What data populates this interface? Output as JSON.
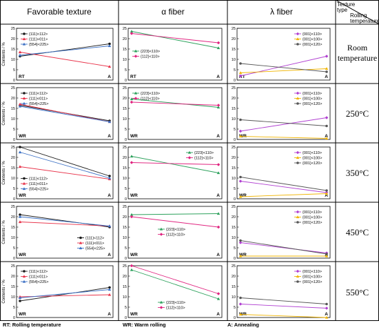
{
  "headers": {
    "favorable": "Favorable texture",
    "alpha": "α fiber",
    "lambda": "λ fiber",
    "corner_type": "Texture type",
    "corner_temp": "Rolling temperature"
  },
  "row_labels": [
    {
      "line1": "Room",
      "line2": "temperature"
    },
    {
      "line1": "250°C",
      "line2": ""
    },
    {
      "line1": "350°C",
      "line2": ""
    },
    {
      "line1": "450°C",
      "line2": ""
    },
    {
      "line1": "550°C",
      "line2": ""
    }
  ],
  "footer": {
    "rt": "RT: Rolling temperature",
    "wr": "WR: Warm rolling",
    "a": "A: Annealing"
  },
  "colors": {
    "fav_111_112": "#1a1a1a",
    "fav_111_011": "#e8334a",
    "fav_554_225": "#3a6fc4",
    "alpha_223_110": "#2aa05a",
    "alpha_112_110": "#e0237f",
    "lambda_001_110": "#b03fd1",
    "lambda_001_100": "#f0b400",
    "lambda_001_120": "#555555"
  },
  "chart_data": [
    {
      "type": "line",
      "row": "Room temperature",
      "texture": "Favorable texture",
      "categories": [
        "RT",
        "A"
      ],
      "ylabel": "Contents / %",
      "ylim": [
        0,
        25
      ],
      "legend": "top-left",
      "series": [
        {
          "name": "{111}<112>",
          "values": [
            11.5,
            17.5
          ]
        },
        {
          "name": "{111}<011>",
          "values": [
            13.5,
            6.5
          ]
        },
        {
          "name": "{554}<225>",
          "values": [
            12,
            16.5
          ]
        }
      ]
    },
    {
      "type": "line",
      "row": "Room temperature",
      "texture": "α fiber",
      "categories": [
        "RT",
        "A"
      ],
      "ylim": [
        0,
        25
      ],
      "legend": "center-left",
      "series": [
        {
          "name": "{223}<110>",
          "values": [
            23.5,
            15.5
          ]
        },
        {
          "name": "{112}<110>",
          "values": [
            22.5,
            18
          ]
        }
      ]
    },
    {
      "type": "line",
      "row": "Room temperature",
      "texture": "λ fiber",
      "categories": [
        "RT",
        "A"
      ],
      "ylim": [
        0,
        25
      ],
      "legend": "top-right",
      "series": [
        {
          "name": "{001}<110>",
          "values": [
            2,
            11.5
          ]
        },
        {
          "name": "{001}<100>",
          "values": [
            3.5,
            5.5
          ]
        },
        {
          "name": "{001}<120>",
          "values": [
            8,
            4
          ]
        }
      ]
    },
    {
      "type": "line",
      "row": "250°C",
      "texture": "Favorable texture",
      "categories": [
        "WR",
        "A"
      ],
      "ylabel": "Contents / %",
      "ylim": [
        0,
        25
      ],
      "legend": "top-left",
      "series": [
        {
          "name": "{111}<112>",
          "values": [
            16.5,
            9
          ]
        },
        {
          "name": "{111}<011>",
          "values": [
            17,
            8.5
          ]
        },
        {
          "name": "{554}<225>",
          "values": [
            16,
            8.5
          ]
        }
      ]
    },
    {
      "type": "line",
      "row": "250°C",
      "texture": "α fiber",
      "categories": [
        "WR",
        "A"
      ],
      "ylim": [
        0,
        25
      ],
      "legend": "top-left",
      "series": [
        {
          "name": "{223}<110>",
          "values": [
            19.5,
            15.5
          ]
        },
        {
          "name": "{112}<110>",
          "values": [
            18,
            16.5
          ]
        }
      ]
    },
    {
      "type": "line",
      "row": "250°C",
      "texture": "λ fiber",
      "categories": [
        "WR",
        "A"
      ],
      "ylim": [
        0,
        25
      ],
      "legend": "top-right",
      "series": [
        {
          "name": "{001}<110>",
          "values": [
            4,
            10.5
          ]
        },
        {
          "name": "{001}<100>",
          "values": [
            1.5,
            0.5
          ]
        },
        {
          "name": "{001}<120>",
          "values": [
            9.5,
            6.5
          ]
        }
      ]
    },
    {
      "type": "line",
      "row": "350°C",
      "texture": "Favorable texture",
      "categories": [
        "WR",
        "A"
      ],
      "ylabel": "Contents / %",
      "ylim": [
        0,
        25
      ],
      "legend": "bottom-left",
      "series": [
        {
          "name": "{111}<112>",
          "values": [
            25,
            11
          ]
        },
        {
          "name": "{111}<011>",
          "values": [
            15.5,
            9.5
          ]
        },
        {
          "name": "{554}<225>",
          "values": [
            22.5,
            10
          ]
        }
      ]
    },
    {
      "type": "line",
      "row": "350°C",
      "texture": "α fiber",
      "categories": [
        "WR",
        "A"
      ],
      "ylim": [
        0,
        25
      ],
      "legend": "top-right",
      "series": [
        {
          "name": "{223}<110>",
          "values": [
            20.5,
            12.5
          ]
        },
        {
          "name": "{112}<110>",
          "values": [
            17.5,
            16.5
          ]
        }
      ]
    },
    {
      "type": "line",
      "row": "350°C",
      "texture": "λ fiber",
      "categories": [
        "WR",
        "A"
      ],
      "ylim": [
        0,
        25
      ],
      "legend": "top-right",
      "series": [
        {
          "name": "{001}<110>",
          "values": [
            8.5,
            3
          ]
        },
        {
          "name": "{001}<100>",
          "values": [
            1,
            2.5
          ]
        },
        {
          "name": "{001}<120>",
          "values": [
            10.5,
            4
          ]
        }
      ]
    },
    {
      "type": "line",
      "row": "450°C",
      "texture": "Favorable texture",
      "categories": [
        "WR",
        "A"
      ],
      "ylabel": "Contents / %",
      "ylim": [
        0,
        25
      ],
      "legend": "bottom-right",
      "series": [
        {
          "name": "{111}<112>",
          "values": [
            21,
            15
          ]
        },
        {
          "name": "{111}<011>",
          "values": [
            17.5,
            15.5
          ]
        },
        {
          "name": "{554}<225>",
          "values": [
            20,
            15.5
          ]
        }
      ]
    },
    {
      "type": "line",
      "row": "450°C",
      "texture": "α fiber",
      "categories": [
        "WR",
        "A"
      ],
      "ylim": [
        0,
        25
      ],
      "legend": "center",
      "series": [
        {
          "name": "{223}<110>",
          "values": [
            21,
            21.5
          ]
        },
        {
          "name": "{112}<110>",
          "values": [
            20,
            15
          ]
        }
      ]
    },
    {
      "type": "line",
      "row": "450°C",
      "texture": "λ fiber",
      "categories": [
        "WR",
        "A"
      ],
      "ylim": [
        0,
        25
      ],
      "legend": "top-right",
      "series": [
        {
          "name": "{001}<110>",
          "values": [
            7.5,
            2.5
          ]
        },
        {
          "name": "{001}<100>",
          "values": [
            1,
            1
          ]
        },
        {
          "name": "{001}<120>",
          "values": [
            8.5,
            2
          ]
        }
      ]
    },
    {
      "type": "line",
      "row": "550°C",
      "texture": "Favorable texture",
      "categories": [
        "WR",
        "A"
      ],
      "ylabel": "Contents / %",
      "ylim": [
        0,
        25
      ],
      "legend": "top-left",
      "series": [
        {
          "name": "{111}<112>",
          "values": [
            8,
            14.5
          ]
        },
        {
          "name": "{111}<011>",
          "values": [
            10,
            11
          ]
        },
        {
          "name": "{554}<225>",
          "values": [
            9.5,
            13.5
          ]
        }
      ]
    },
    {
      "type": "line",
      "row": "550°C",
      "texture": "α fiber",
      "categories": [
        "WR",
        "A"
      ],
      "ylim": [
        0,
        25
      ],
      "legend": "bottom-center",
      "series": [
        {
          "name": "{223}<110>",
          "values": [
            23,
            9
          ]
        },
        {
          "name": "{112}<110>",
          "values": [
            25,
            11.5
          ]
        }
      ]
    },
    {
      "type": "line",
      "row": "550°C",
      "texture": "λ fiber",
      "categories": [
        "WR",
        "A"
      ],
      "ylim": [
        0,
        25
      ],
      "legend": "top-right",
      "series": [
        {
          "name": "{001}<110>",
          "values": [
            6.5,
            4.5
          ]
        },
        {
          "name": "{001}<100>",
          "values": [
            1.5,
            0
          ]
        },
        {
          "name": "{001}<120>",
          "values": [
            9.5,
            6.5
          ]
        }
      ]
    }
  ]
}
